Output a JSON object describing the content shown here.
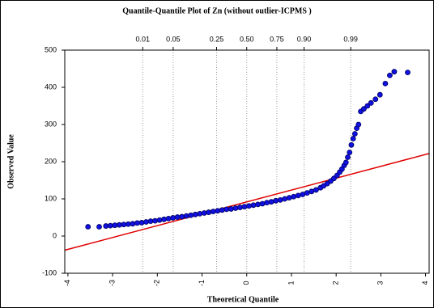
{
  "chart_data": {
    "type": "scatter",
    "title": "Quantile-Quantile Plot of Zn (without outlier-ICPMS )",
    "x_label": "Theoretical Quantile",
    "y_label": "Observed Value",
    "xlim": [
      -4.07,
      4.08
    ],
    "ylim": [
      -100,
      500
    ],
    "xticks": [
      -4,
      -3,
      -2,
      -1,
      0,
      1,
      2,
      3,
      4
    ],
    "yticks": [
      -100,
      0,
      100,
      200,
      300,
      400,
      500
    ],
    "top_ticks": [
      {
        "value": -2.326,
        "label": "0.01"
      },
      {
        "value": -1.645,
        "label": "0.05"
      },
      {
        "value": -0.674,
        "label": "0.25"
      },
      {
        "value": 0,
        "label": "0.50"
      },
      {
        "value": 0.674,
        "label": "0.75"
      },
      {
        "value": 1.282,
        "label": "0.90"
      },
      {
        "value": 2.326,
        "label": "0.99"
      }
    ],
    "grid": true,
    "color": "#1010e0",
    "x": [
      -3.55,
      -3.3,
      -3.15,
      -3.05,
      -2.95,
      -2.85,
      -2.75,
      -2.65,
      -2.55,
      -2.45,
      -2.35,
      -2.25,
      -2.15,
      -2.05,
      -1.95,
      -1.85,
      -1.75,
      -1.65,
      -1.55,
      -1.45,
      -1.35,
      -1.25,
      -1.15,
      -1.05,
      -0.95,
      -0.85,
      -0.75,
      -0.65,
      -0.55,
      -0.45,
      -0.35,
      -0.25,
      -0.15,
      -0.05,
      0.05,
      0.15,
      0.25,
      0.35,
      0.45,
      0.55,
      0.65,
      0.75,
      0.85,
      0.95,
      1.05,
      1.15,
      1.25,
      1.35,
      1.45,
      1.55,
      1.65,
      1.72,
      1.8,
      1.88,
      1.95,
      2.02,
      2.08,
      2.13,
      2.18,
      2.22,
      2.26,
      2.3,
      2.34,
      2.38,
      2.42,
      2.46,
      2.5,
      2.55,
      2.62,
      2.7,
      2.78,
      2.88,
      2.98,
      3.1,
      3.2,
      3.3,
      3.6
    ],
    "values": [
      25,
      25,
      27,
      28,
      29,
      30,
      31,
      32,
      33,
      35,
      36,
      38,
      40,
      41,
      43,
      45,
      47,
      49,
      51,
      52,
      54,
      56,
      58,
      60,
      62,
      64,
      66,
      68,
      70,
      72,
      73,
      75,
      77,
      79,
      81,
      83,
      85,
      87,
      90,
      92,
      95,
      97,
      100,
      103,
      106,
      109,
      112,
      116,
      120,
      124,
      130,
      135,
      141,
      148,
      155,
      163,
      172,
      180,
      190,
      198,
      212,
      225,
      245,
      262,
      275,
      290,
      300,
      335,
      342,
      350,
      358,
      368,
      380,
      410,
      432,
      442,
      440
    ],
    "reference_line": {
      "x": [
        -4.07,
        4.08
      ],
      "y": [
        -38,
        222
      ],
      "color": "#e00000"
    }
  }
}
